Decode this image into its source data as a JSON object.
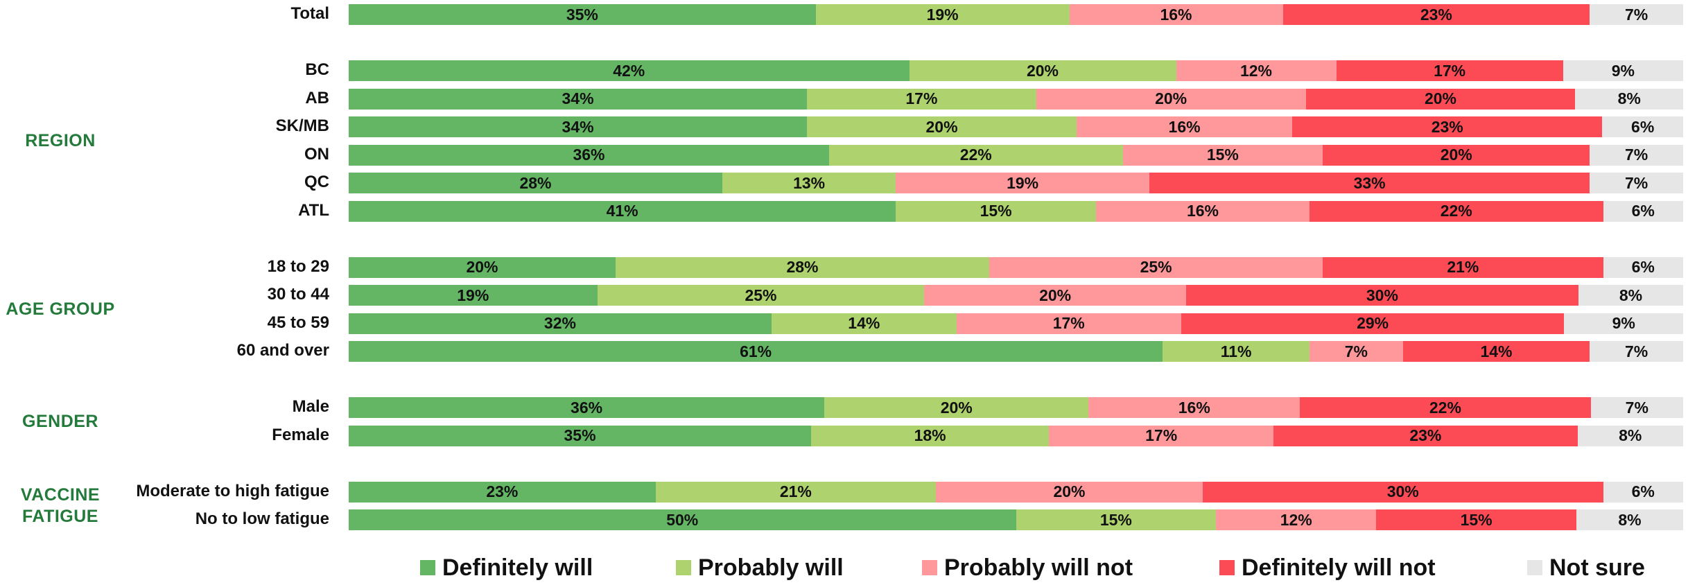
{
  "chart_data": {
    "type": "bar",
    "orientation": "horizontal",
    "stacked": true,
    "value_unit": "%",
    "series": [
      {
        "name": "Definitely will",
        "color": "#64b665"
      },
      {
        "name": "Probably will",
        "color": "#add26e"
      },
      {
        "name": "Probably will not",
        "color": "#fe989a"
      },
      {
        "name": "Definitely will not",
        "color": "#fd4b56"
      },
      {
        "name": "Not sure",
        "color": "#e6e6e6"
      }
    ],
    "groups": [
      {
        "label": "",
        "rows": [
          {
            "label": "Total",
            "values": [
              35,
              19,
              16,
              23,
              7
            ]
          }
        ]
      },
      {
        "label": "REGION",
        "rows": [
          {
            "label": "BC",
            "values": [
              42,
              20,
              12,
              17,
              9
            ]
          },
          {
            "label": "AB",
            "values": [
              34,
              17,
              20,
              20,
              8
            ]
          },
          {
            "label": "SK/MB",
            "values": [
              34,
              20,
              16,
              23,
              6
            ]
          },
          {
            "label": "ON",
            "values": [
              36,
              22,
              15,
              20,
              7
            ]
          },
          {
            "label": "QC",
            "values": [
              28,
              13,
              19,
              33,
              7
            ]
          },
          {
            "label": "ATL",
            "values": [
              41,
              15,
              16,
              22,
              6
            ]
          }
        ]
      },
      {
        "label": "AGE GROUP",
        "rows": [
          {
            "label": "18 to 29",
            "values": [
              20,
              28,
              25,
              21,
              6
            ]
          },
          {
            "label": "30 to 44",
            "values": [
              19,
              25,
              20,
              30,
              8
            ]
          },
          {
            "label": "45 to 59",
            "values": [
              32,
              14,
              17,
              29,
              9
            ]
          },
          {
            "label": "60 and over",
            "values": [
              61,
              11,
              7,
              14,
              7
            ]
          }
        ]
      },
      {
        "label": "GENDER",
        "rows": [
          {
            "label": "Male",
            "values": [
              36,
              20,
              16,
              22,
              7
            ]
          },
          {
            "label": "Female",
            "values": [
              35,
              18,
              17,
              23,
              8
            ]
          }
        ]
      },
      {
        "label": "VACCINE FATIGUE",
        "rows": [
          {
            "label": "Moderate to high fatigue",
            "values": [
              23,
              21,
              20,
              30,
              6
            ]
          },
          {
            "label": "No to low fatigue",
            "values": [
              50,
              15,
              12,
              15,
              8
            ]
          }
        ]
      }
    ],
    "xlim": [
      0,
      100
    ],
    "legend_position": "bottom",
    "grid": false
  }
}
